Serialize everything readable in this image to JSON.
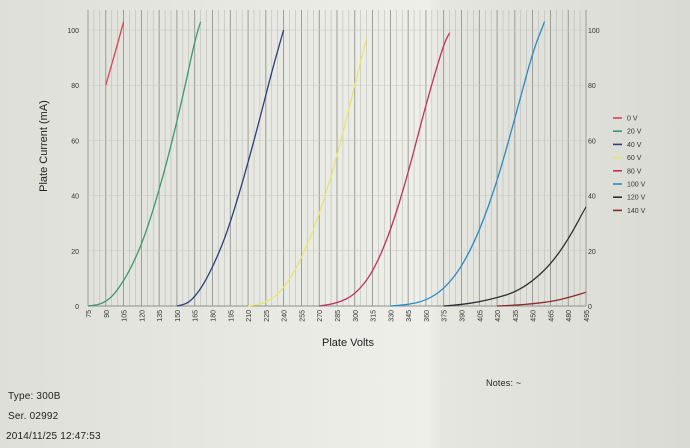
{
  "chart_data": {
    "type": "line",
    "xlabel": "Plate Volts",
    "ylabel": "Plate Current (mA)",
    "x_ticks": [
      75,
      90,
      105,
      120,
      135,
      150,
      165,
      180,
      195,
      210,
      225,
      240,
      255,
      270,
      285,
      300,
      315,
      330,
      345,
      360,
      375,
      390,
      405,
      420,
      435,
      450,
      465,
      480,
      495
    ],
    "xlim": [
      75,
      495
    ],
    "ylim": [
      0,
      100
    ],
    "y_ticks_left": [
      0,
      20,
      40,
      60,
      80,
      100
    ],
    "y_ticks_right": [
      0,
      20,
      40,
      60,
      80,
      100
    ],
    "grid": true,
    "legend_position": "right",
    "series": [
      {
        "name": "0 V",
        "color": "#e0405a",
        "x": [
          90,
          100,
          105
        ],
        "y": [
          80,
          95,
          103
        ]
      },
      {
        "name": "20 V",
        "color": "#3a9a6a",
        "x": [
          75,
          85,
          95,
          105,
          115,
          125,
          135,
          145,
          155,
          165,
          170
        ],
        "y": [
          0,
          0.5,
          3,
          9,
          17,
          28,
          42,
          58,
          76,
          96,
          103
        ]
      },
      {
        "name": "40 V",
        "color": "#2c3f78",
        "x": [
          150,
          160,
          170,
          180,
          190,
          200,
          210,
          220,
          230,
          240
        ],
        "y": [
          0,
          1,
          6,
          14,
          24,
          37,
          52,
          68,
          85,
          100
        ]
      },
      {
        "name": "60 V",
        "color": "#e6e66e",
        "x": [
          210,
          225,
          240,
          255,
          270,
          285,
          300,
          310
        ],
        "y": [
          0,
          1,
          6,
          17,
          33,
          54,
          80,
          97
        ]
      },
      {
        "name": "80 V",
        "color": "#c22f62",
        "x": [
          270,
          285,
          300,
          315,
          330,
          345,
          360,
          375,
          380
        ],
        "y": [
          0,
          1,
          4,
          12,
          27,
          48,
          73,
          95,
          99
        ]
      },
      {
        "name": "100 V",
        "color": "#2a8ac4",
        "x": [
          330,
          345,
          360,
          375,
          390,
          405,
          420,
          435,
          450,
          460
        ],
        "y": [
          0,
          0.5,
          2,
          6,
          14,
          27,
          45,
          68,
          92,
          103
        ]
      },
      {
        "name": "120 V",
        "color": "#2e2e2e",
        "x": [
          375,
          390,
          405,
          420,
          435,
          450,
          465,
          480,
          495
        ],
        "y": [
          0,
          0.5,
          1.5,
          3,
          5,
          9,
          15,
          24,
          36
        ]
      },
      {
        "name": "140 V",
        "color": "#8a2a2a",
        "x": [
          420,
          435,
          450,
          465,
          480,
          495
        ],
        "y": [
          0,
          0.3,
          0.8,
          1.6,
          3,
          5
        ]
      }
    ]
  },
  "info": {
    "type_label": "Type: 300B",
    "serial_label": "Ser. 02992",
    "datetime": "2014/11/25  12:47:53",
    "notes_label": "Notes: ~"
  }
}
